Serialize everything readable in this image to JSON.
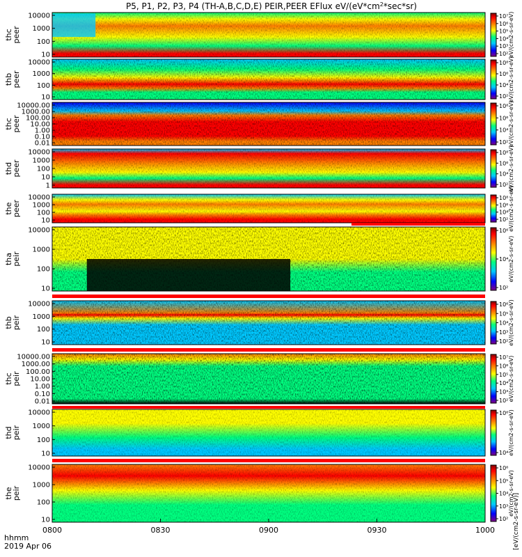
{
  "title": "P5, P1, P2, P3, P4 (TH-A,B,C,D,E) PEIR,PEER EFlux eV/(eV*cm",
  "title_sup": "2",
  "title_tail": "*sec*sr)",
  "x_axis": {
    "unit_label": "hhmm",
    "date_label": "2019 Apr 06",
    "ticks": [
      "0800",
      "0830",
      "0900",
      "0930",
      "1000"
    ],
    "range": [
      "08:00",
      "10:00"
    ]
  },
  "colorbar_label": "eV/(cm2-s-sr-eV)",
  "colorbar_label_bottom": "[eV/(cm2-s-sr-eV)]",
  "colors": {
    "colormap": [
      "#800080",
      "#0000ff",
      "#00c8ff",
      "#00ff80",
      "#ffff00",
      "#ff8000",
      "#ff0000",
      "#800000"
    ],
    "red_bar": "#ff0000",
    "background": "#ffffff"
  },
  "chart_data": [
    {
      "type": "heatmap",
      "ylabel": [
        "thc",
        "peer"
      ],
      "yticks": [
        "10",
        "100",
        "1000",
        "10000"
      ],
      "cb_ticks": [
        "10²",
        "10³",
        "10⁴",
        "10⁵",
        "10⁶",
        "10⁷"
      ]
    },
    {
      "type": "heatmap",
      "ylabel": [
        "thb",
        "peer"
      ],
      "yticks": [
        "10",
        "100",
        "1000",
        "10000"
      ],
      "cb_ticks": [
        "10²",
        "10⁴",
        "10⁶",
        "10⁸"
      ]
    },
    {
      "type": "heatmap",
      "ylabel": [
        "thc",
        "peer"
      ],
      "yticks": [
        "0.01",
        "0.10",
        "1.00",
        "10.00",
        "100.00",
        "1000.00",
        "10000.00"
      ],
      "cb_ticks": [
        "10²",
        "10⁴",
        "10⁶",
        "10⁸"
      ]
    },
    {
      "type": "heatmap",
      "ylabel": [
        "thd",
        "peer"
      ],
      "yticks": [
        "1",
        "10",
        "100",
        "1000",
        "10000"
      ],
      "cb_ticks": [
        "10²",
        "10⁴",
        "10⁶",
        "10⁸"
      ]
    },
    {
      "type": "heatmap",
      "ylabel": [
        "the",
        "peer"
      ],
      "yticks": [
        "10",
        "100",
        "1000",
        "10000"
      ],
      "cb_ticks": [
        "10²",
        "10⁴",
        "10⁶",
        "10⁸"
      ]
    },
    {
      "type": "heatmap",
      "ylabel": [
        "tha",
        "peir"
      ],
      "yticks": [
        "10",
        "100",
        "1000",
        "10000"
      ],
      "cb_ticks": [
        "10²",
        "10⁴",
        "10⁶"
      ]
    },
    {
      "type": "heatmap",
      "ylabel": [
        "thb",
        "peir"
      ],
      "yticks": [
        "10",
        "100",
        "1000",
        "10000"
      ],
      "cb_ticks": [
        "10²",
        "10³",
        "10⁴",
        "10⁵",
        "10⁶"
      ]
    },
    {
      "type": "heatmap",
      "ylabel": [
        "thc",
        "peir"
      ],
      "yticks": [
        "0.01",
        "0.10",
        "1.00",
        "10.00",
        "100.00",
        "1000.00",
        "10000.00"
      ],
      "cb_ticks": [
        "10²",
        "10³",
        "10⁴",
        "10⁵",
        "10⁶",
        "10⁷"
      ]
    },
    {
      "type": "heatmap",
      "ylabel": [
        "thd",
        "peir"
      ],
      "yticks": [
        "10",
        "100",
        "1000",
        "10000"
      ],
      "cb_ticks": [
        "10⁴",
        "10⁶"
      ]
    },
    {
      "type": "heatmap",
      "ylabel": [
        "the",
        "peir"
      ],
      "yticks": [
        "10",
        "100",
        "1000",
        "10000"
      ],
      "cb_ticks": [
        "10²",
        "10³",
        "10⁴",
        "10⁵",
        "10⁶"
      ]
    }
  ]
}
